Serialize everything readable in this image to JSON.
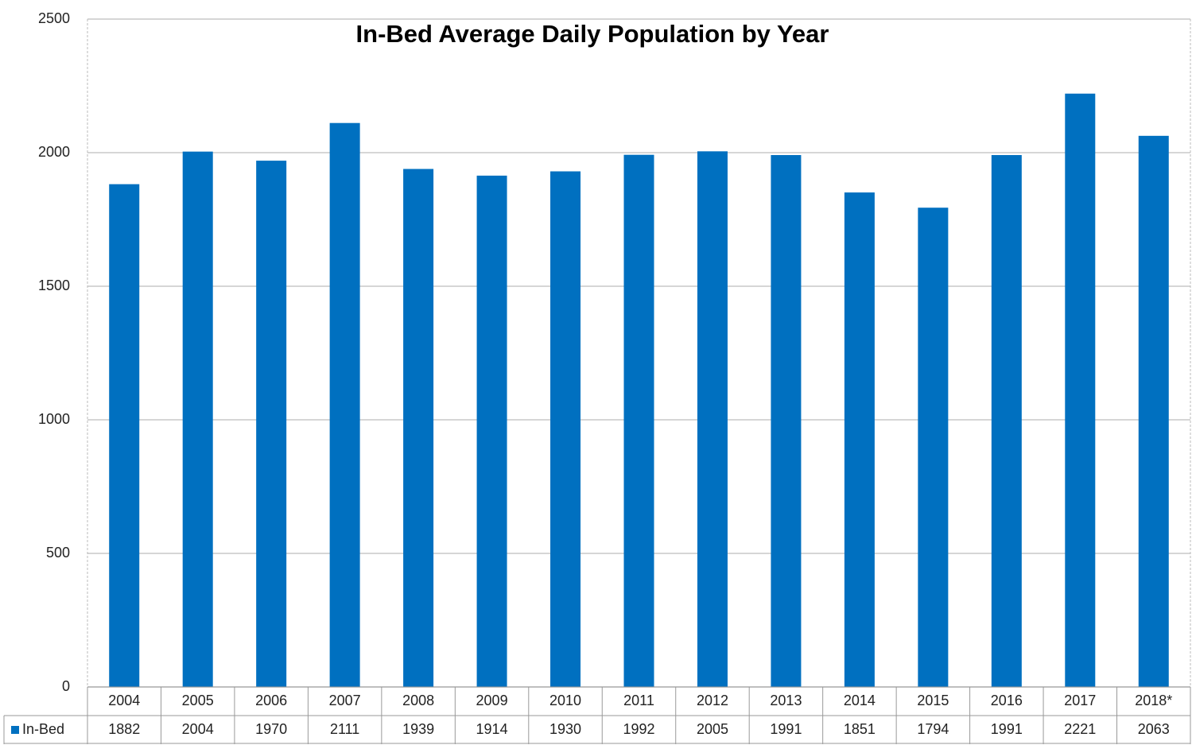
{
  "chart_data": {
    "type": "bar",
    "title": "In-Bed Average Daily Population by Year",
    "categories": [
      "2004",
      "2005",
      "2006",
      "2007",
      "2008",
      "2009",
      "2010",
      "2011",
      "2012",
      "2013",
      "2014",
      "2015",
      "2016",
      "2017",
      "2018*"
    ],
    "series": [
      {
        "name": "In-Bed",
        "color": "#0070c0",
        "values": [
          1882,
          2004,
          1970,
          2111,
          1939,
          1914,
          1930,
          1992,
          2005,
          1991,
          1851,
          1794,
          1991,
          2221,
          2063
        ]
      }
    ],
    "ylim": [
      0,
      2500
    ],
    "yticks": [
      0,
      500,
      1000,
      1500,
      2000,
      2500
    ],
    "grid": true,
    "data_table": true
  }
}
